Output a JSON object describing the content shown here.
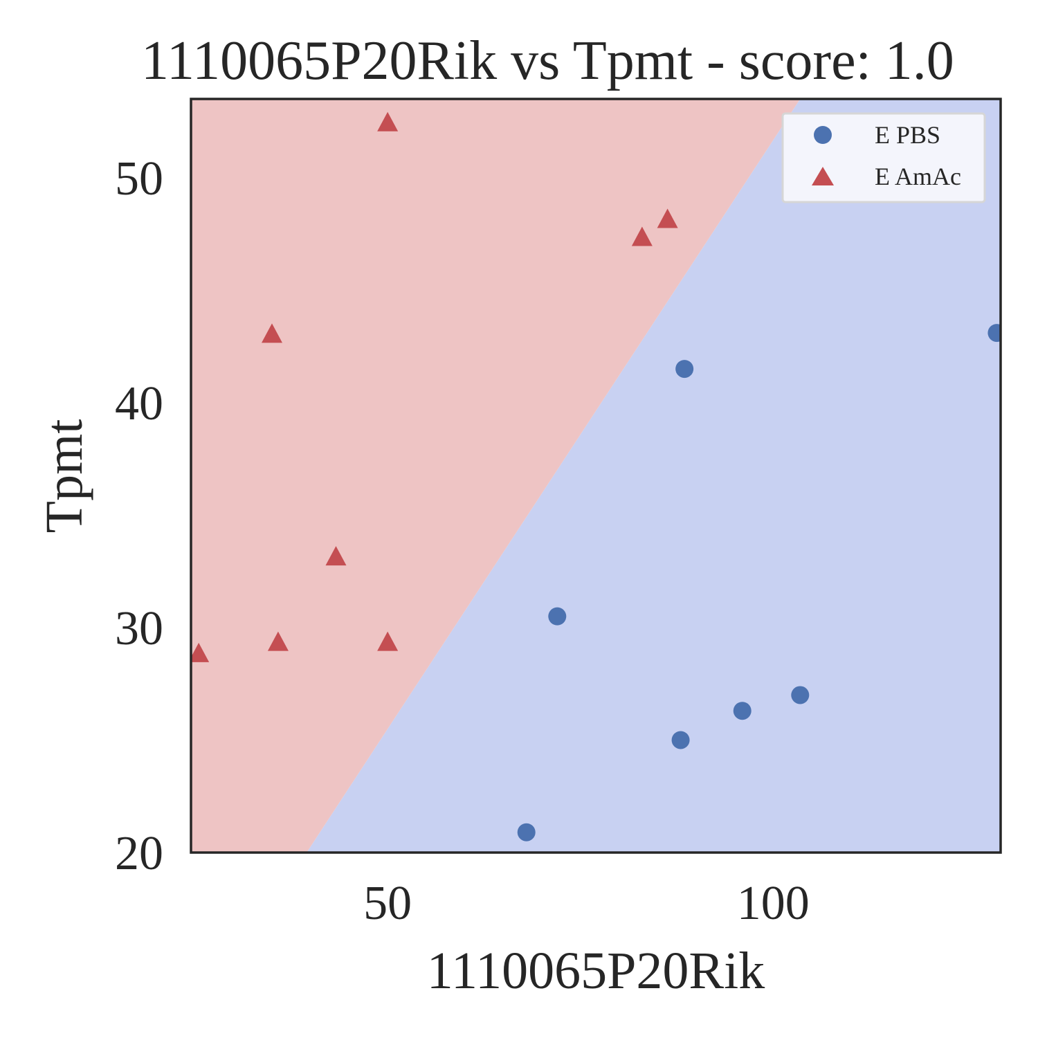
{
  "chart_data": {
    "type": "scatter",
    "title": "1110065P20Rik vs Tpmt - score: 1.0",
    "xlabel": "1110065P20Rik",
    "ylabel": "Tpmt",
    "xlim": [
      24.5,
      129.5
    ],
    "ylim": [
      20,
      53.5
    ],
    "xticks": [
      50,
      100
    ],
    "yticks": [
      20,
      30,
      40,
      50
    ],
    "grid": false,
    "legend_position": "top-right",
    "decision_boundary": {
      "points": [
        [
          39.5,
          20
        ],
        [
          103.5,
          53.5
        ]
      ],
      "left_region_color": "#eec4c4",
      "right_region_color": "#c8d1f2"
    },
    "series": [
      {
        "name": "E PBS",
        "marker": "circle",
        "color": "#4c72b0",
        "points": [
          [
            68.0,
            20.9
          ],
          [
            72.0,
            30.5
          ],
          [
            88.0,
            25.0
          ],
          [
            88.5,
            41.5
          ],
          [
            96.0,
            26.3
          ],
          [
            103.5,
            27.0
          ],
          [
            129.0,
            43.1
          ]
        ]
      },
      {
        "name": "E AmAc",
        "marker": "triangle",
        "color": "#c44e52",
        "points": [
          [
            25.5,
            28.8
          ],
          [
            35.0,
            43.0
          ],
          [
            35.8,
            29.3
          ],
          [
            43.3,
            33.1
          ],
          [
            50.0,
            52.4
          ],
          [
            50.0,
            29.3
          ],
          [
            83.0,
            47.3
          ],
          [
            86.3,
            48.1
          ]
        ]
      }
    ]
  }
}
